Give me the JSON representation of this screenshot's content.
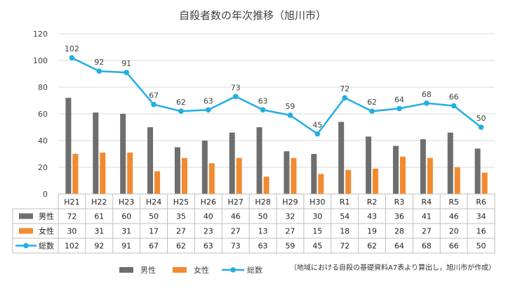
{
  "chart_data": {
    "type": "bar",
    "title": "自殺者数の年次推移（旭川市）",
    "categories": [
      "H21",
      "H22",
      "H23",
      "H24",
      "H25",
      "H26",
      "H27",
      "H28",
      "H29",
      "H30",
      "R1",
      "R2",
      "R3",
      "R4",
      "R5",
      "R6"
    ],
    "ylim": [
      0,
      120
    ],
    "yticks": [
      0,
      20,
      40,
      60,
      80,
      100,
      120
    ],
    "grid": true,
    "legend_position": "bottom",
    "series": [
      {
        "name": "男性",
        "kind": "bar",
        "color": "#6e6e6e",
        "values": [
          72,
          61,
          60,
          50,
          35,
          40,
          46,
          50,
          32,
          30,
          54,
          43,
          36,
          41,
          46,
          34
        ]
      },
      {
        "name": "女性",
        "kind": "bar",
        "color": "#f28a30",
        "values": [
          30,
          31,
          31,
          17,
          27,
          23,
          27,
          13,
          27,
          15,
          18,
          19,
          28,
          27,
          20,
          16
        ]
      },
      {
        "name": "総数",
        "kind": "line",
        "color": "#22aee3",
        "values": [
          102,
          92,
          91,
          67,
          62,
          63,
          73,
          63,
          59,
          45,
          72,
          62,
          64,
          68,
          66,
          50
        ]
      }
    ],
    "source_note": "（地域における自殺の基礎資料A7表より算出し，旭川市が作成）"
  }
}
